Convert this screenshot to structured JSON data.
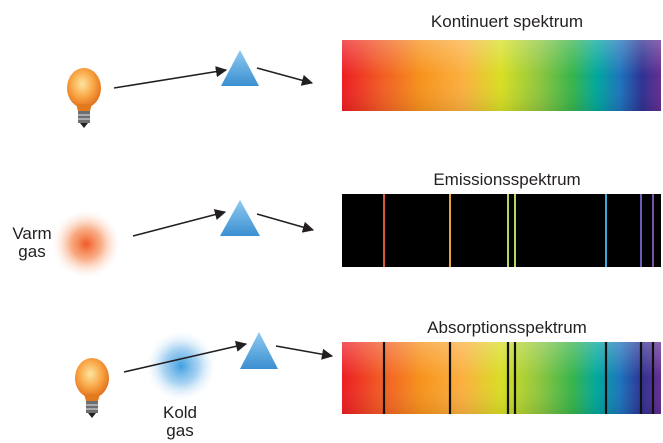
{
  "panels": [
    {
      "title": "Kontinuert spektrum",
      "source_label": ""
    },
    {
      "title": "Emissionsspektrum",
      "source_label_line1": "Varm",
      "source_label_line2": "gas"
    },
    {
      "title": "Absorptionsspektrum",
      "source_label_line1": "Kold",
      "source_label_line2": "gas"
    }
  ],
  "colors": {
    "arrow": "#231f20",
    "prism": "#5aa8de",
    "bulb": "#f7941d",
    "warm_gas": "#f15a24",
    "cold_gas": "#4aa3df",
    "line_dark": "#111111"
  },
  "emission_line_colors": [
    "#d9583b",
    "#e8a23c",
    "#b7d65a",
    "#b7d65a",
    "#3da9d8",
    "#6a5bb8",
    "#7a4fa8"
  ],
  "icons": [
    "light-bulb-icon",
    "prism-icon",
    "arrow-icon"
  ]
}
